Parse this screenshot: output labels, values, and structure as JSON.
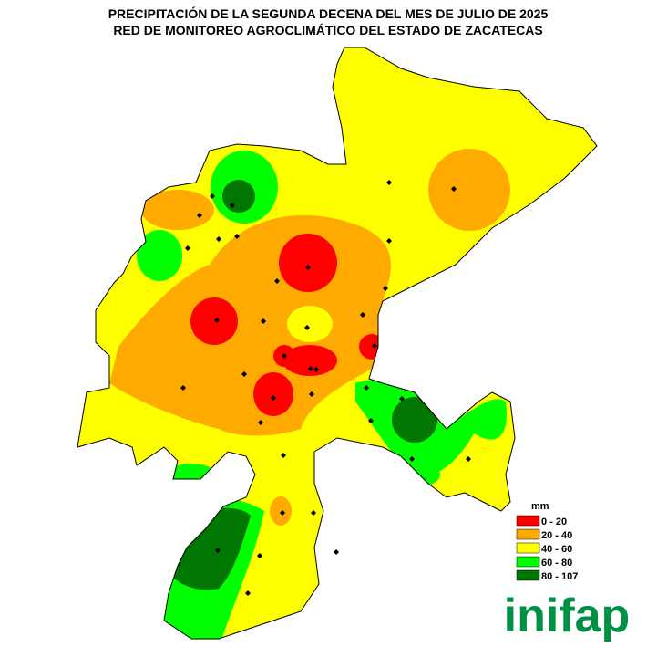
{
  "header": {
    "title": "PRECIPITACIÓN DE LA SEGUNDA DECENA DEL MES DE JULIO DE 2025",
    "subtitle": "RED DE MONITOREO AGROCLIMÁTICO DEL ESTADO DE ZACATECAS"
  },
  "legend": {
    "title": "mm",
    "items": [
      {
        "label": "0 - 20",
        "color": "#ff0000"
      },
      {
        "label": "20 - 40",
        "color": "#ffaa00"
      },
      {
        "label": "40 - 60",
        "color": "#ffff00"
      },
      {
        "label": "60 - 80",
        "color": "#00ff00"
      },
      {
        "label": "80 - 107",
        "color": "#007700"
      }
    ]
  },
  "logo": {
    "text": "inifap"
  }
}
